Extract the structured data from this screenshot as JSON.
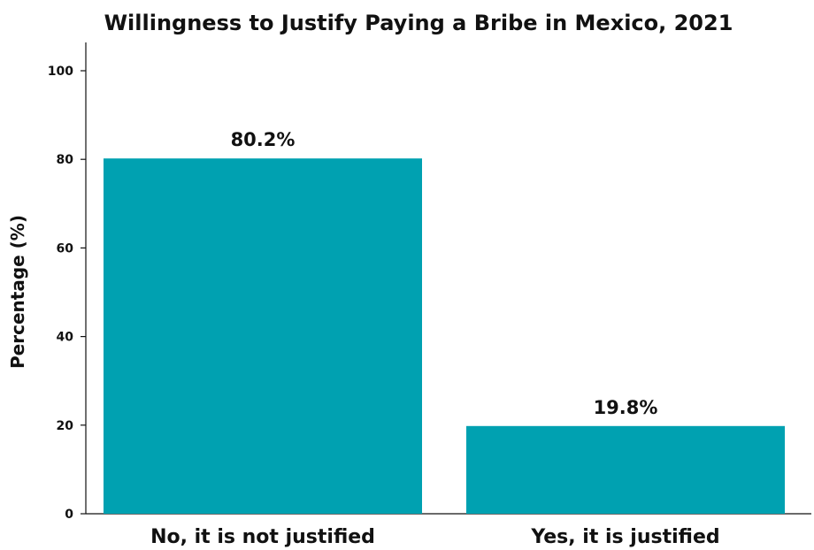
{
  "chart_data": {
    "type": "bar",
    "title": "Willingness to Justify Paying a Bribe in Mexico, 2021",
    "xlabel": "",
    "ylabel": "Percentage (%)",
    "categories": [
      "No, it is not justified",
      "Yes, it is justified"
    ],
    "values": [
      80.2,
      19.8
    ],
    "data_labels": [
      "80.2%",
      "19.8%"
    ],
    "ylim": [
      0,
      100
    ],
    "yticks": [
      0,
      20,
      40,
      60,
      80,
      100
    ],
    "ytick_labels": [
      "0",
      "20",
      "40",
      "60",
      "80",
      "100"
    ],
    "bar_color": "#00A1B1",
    "grid": false,
    "legend": false
  }
}
